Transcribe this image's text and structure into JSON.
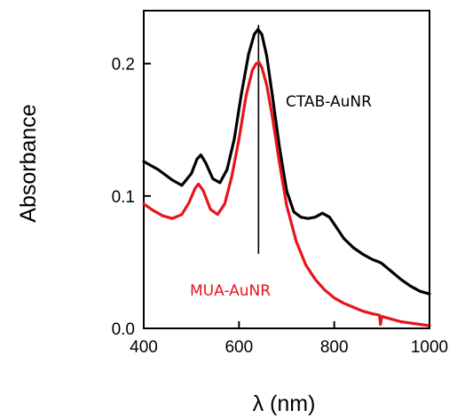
{
  "chart_data": {
    "type": "line",
    "xlabel": "λ (nm)",
    "ylabel": "Absorbance",
    "xlim": [
      400,
      1000
    ],
    "ylim": [
      0.0,
      0.24
    ],
    "grid": false,
    "x_ticks": [
      400,
      600,
      800,
      1000
    ],
    "x_tick_labels": [
      "400",
      "600",
      "800",
      "1000"
    ],
    "y_ticks": [
      0.0,
      0.1,
      0.2
    ],
    "y_tick_labels": [
      "0.0",
      "0.1",
      "0.2"
    ],
    "vline_x": 641,
    "series": [
      {
        "name": "CTAB-AuNR",
        "color": "#000000",
        "x": [
          400,
          430,
          460,
          480,
          500,
          512,
          520,
          530,
          545,
          560,
          575,
          590,
          605,
          620,
          632,
          640,
          648,
          658,
          670,
          685,
          700,
          715,
          730,
          745,
          760,
          775,
          790,
          805,
          820,
          840,
          860,
          880,
          895,
          900,
          920,
          940,
          960,
          980,
          1000
        ],
        "y": [
          0.126,
          0.12,
          0.112,
          0.108,
          0.117,
          0.128,
          0.131,
          0.125,
          0.113,
          0.11,
          0.12,
          0.143,
          0.177,
          0.207,
          0.222,
          0.226,
          0.222,
          0.206,
          0.176,
          0.137,
          0.104,
          0.088,
          0.084,
          0.083,
          0.084,
          0.087,
          0.084,
          0.076,
          0.068,
          0.061,
          0.056,
          0.052,
          0.05,
          0.049,
          0.043,
          0.037,
          0.032,
          0.028,
          0.026
        ]
      },
      {
        "name": "MUA-AuNR",
        "color": "#e8141a",
        "x": [
          400,
          420,
          440,
          460,
          480,
          495,
          508,
          515,
          525,
          540,
          555,
          570,
          585,
          600,
          615,
          628,
          636,
          642,
          648,
          658,
          670,
          685,
          700,
          720,
          740,
          760,
          780,
          800,
          820,
          840,
          860,
          880,
          895,
          897,
          900,
          920,
          940,
          960,
          980,
          1000
        ],
        "y": [
          0.094,
          0.089,
          0.085,
          0.083,
          0.086,
          0.095,
          0.106,
          0.109,
          0.104,
          0.09,
          0.086,
          0.094,
          0.115,
          0.143,
          0.176,
          0.195,
          0.2,
          0.201,
          0.197,
          0.184,
          0.16,
          0.125,
          0.093,
          0.066,
          0.048,
          0.037,
          0.029,
          0.023,
          0.019,
          0.016,
          0.013,
          0.011,
          0.01,
          0.003,
          0.009,
          0.007,
          0.005,
          0.004,
          0.003,
          0.002
        ]
      }
    ]
  }
}
